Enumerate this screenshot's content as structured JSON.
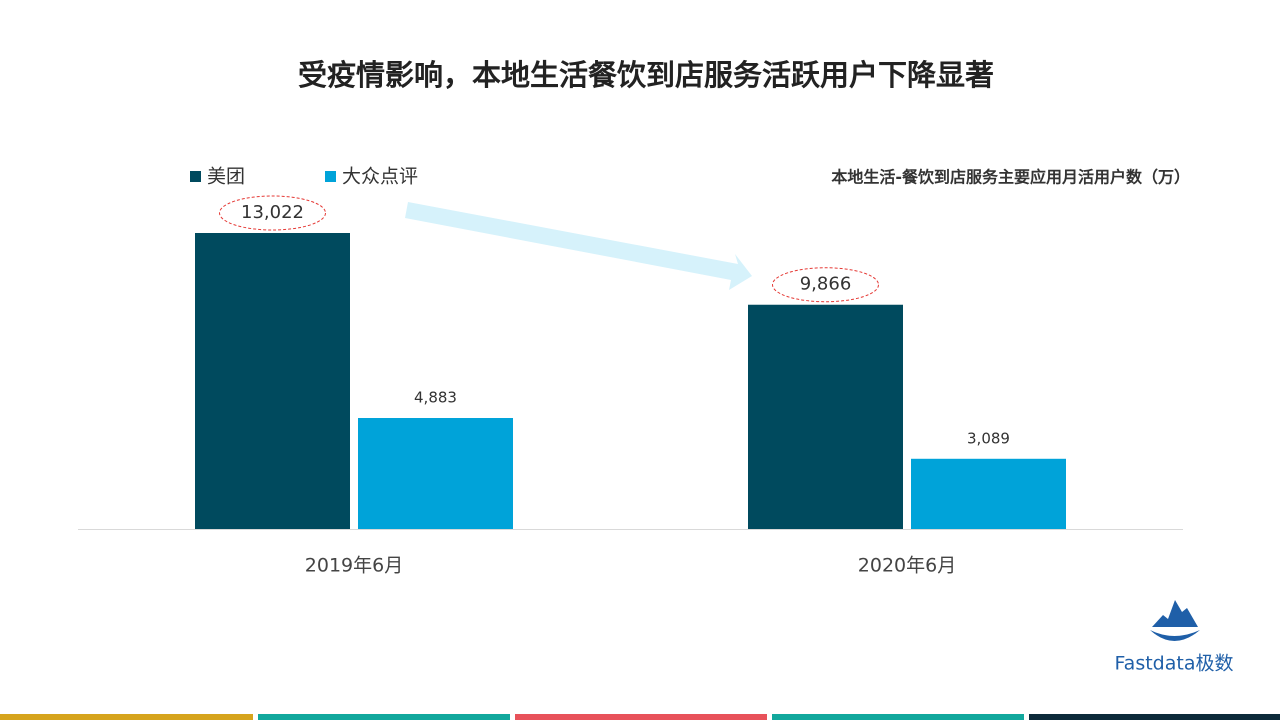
{
  "chart_data": {
    "type": "bar",
    "title": "受疫情影响，本地生活餐饮到店服务活跃用户下降显著",
    "subtitle": "本地生活-餐饮到店服务主要应用月活用户数（万）",
    "categories": [
      "2019年6月",
      "2020年6月"
    ],
    "series": [
      {
        "name": "美团",
        "color": "#004a5e",
        "values": [
          13022,
          9866
        ],
        "value_labels": [
          "13,022",
          "9,866"
        ]
      },
      {
        "name": "大众点评",
        "color": "#00a3d9",
        "values": [
          4883,
          3089
        ],
        "value_labels": [
          "4,883",
          "3,089"
        ]
      }
    ],
    "legend": "top-left",
    "grid": false
  },
  "footer": {
    "logo": "Fastdata极数"
  }
}
